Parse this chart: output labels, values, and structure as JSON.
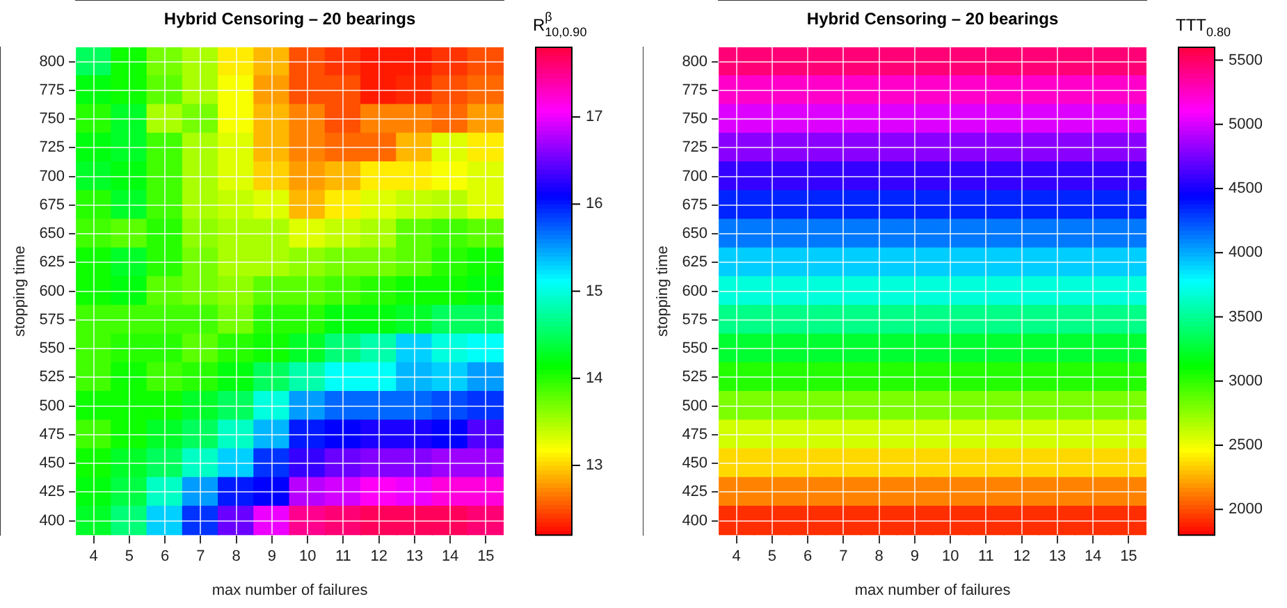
{
  "chart_data": [
    {
      "type": "heatmap",
      "title": "Hybrid Censoring – 20 bearings",
      "xlabel": "max number of failures",
      "ylabel": "stopping time",
      "clabel": "R$^{β}$$_{10,0.90}$",
      "grid": true,
      "categories": [
        "4",
        "5",
        "6",
        "7",
        "8",
        "9",
        "10",
        "11",
        "12",
        "13",
        "14",
        "15"
      ],
      "y_categories": [
        "800",
        "775",
        "750",
        "725",
        "700",
        "675",
        "650",
        "625",
        "600",
        "575",
        "550",
        "525",
        "500",
        "475",
        "450",
        "425",
        "400"
      ],
      "cells": [
        [
          14.5,
          14.1,
          13.7,
          13.5,
          13.1,
          12.9,
          12.5,
          12.4,
          12.3,
          12.3,
          12.4,
          12.5
        ],
        [
          14.2,
          14.1,
          13.8,
          13.5,
          13.2,
          12.8,
          12.5,
          12.5,
          12.3,
          12.35,
          12.5,
          12.6
        ],
        [
          14.0,
          14.3,
          13.5,
          13.7,
          13.2,
          12.9,
          12.7,
          12.5,
          12.7,
          12.7,
          12.6,
          12.8
        ],
        [
          14.2,
          14.3,
          13.9,
          13.5,
          13.3,
          12.9,
          12.7,
          12.6,
          12.6,
          12.9,
          13.3,
          13.1
        ],
        [
          14.3,
          14.2,
          13.9,
          13.5,
          13.3,
          13.0,
          12.8,
          12.9,
          13.1,
          13.1,
          13.2,
          13.3
        ],
        [
          14.0,
          14.3,
          13.9,
          13.5,
          13.4,
          13.3,
          12.9,
          13.1,
          13.3,
          13.4,
          13.45,
          13.3
        ],
        [
          13.9,
          13.8,
          14.0,
          13.6,
          13.5,
          13.5,
          13.3,
          13.4,
          13.5,
          13.8,
          13.9,
          13.8
        ],
        [
          14.1,
          14.3,
          14.0,
          13.7,
          13.5,
          13.5,
          13.6,
          13.7,
          13.7,
          13.8,
          14.0,
          14.1
        ],
        [
          14.1,
          14.2,
          13.8,
          13.7,
          13.6,
          13.8,
          13.8,
          13.9,
          14.0,
          14.1,
          14.1,
          14.2
        ],
        [
          13.9,
          13.9,
          13.9,
          13.9,
          13.7,
          14.0,
          14.0,
          14.2,
          14.2,
          14.3,
          14.5,
          14.5
        ],
        [
          13.9,
          14.0,
          14.0,
          13.8,
          14.0,
          14.1,
          14.3,
          14.6,
          14.8,
          15.3,
          15.0,
          15.1
        ],
        [
          13.9,
          14.1,
          13.9,
          14.0,
          14.2,
          14.5,
          14.8,
          15.1,
          15.1,
          15.4,
          15.3,
          15.5
        ],
        [
          14.1,
          14.1,
          14.1,
          14.3,
          14.5,
          15.0,
          15.5,
          15.7,
          15.7,
          15.7,
          15.8,
          15.9
        ],
        [
          13.9,
          14.1,
          14.3,
          14.5,
          14.9,
          15.4,
          16.0,
          16.1,
          16.2,
          16.2,
          16.1,
          16.4
        ],
        [
          14.1,
          14.3,
          14.5,
          14.9,
          15.3,
          15.9,
          16.3,
          16.5,
          16.6,
          16.6,
          16.7,
          16.7
        ],
        [
          14.2,
          14.4,
          14.9,
          15.5,
          16.0,
          16.1,
          16.8,
          16.9,
          17.1,
          17.0,
          17.2,
          17.2
        ],
        [
          14.3,
          14.6,
          15.3,
          15.9,
          16.5,
          17.0,
          17.5,
          17.6,
          17.7,
          17.7,
          17.7,
          17.6
        ]
      ],
      "clim": [
        12.2,
        17.8
      ],
      "cticks": [
        13,
        14,
        15,
        16,
        17
      ]
    },
    {
      "type": "heatmap",
      "title": "Hybrid Censoring – 20 bearings",
      "xlabel": "max number of failures",
      "ylabel": "stopping time",
      "clabel": "TTT$_{0.80}$",
      "grid": true,
      "categories": [
        "4",
        "5",
        "6",
        "7",
        "8",
        "9",
        "10",
        "11",
        "12",
        "13",
        "14",
        "15"
      ],
      "y_categories": [
        "800",
        "775",
        "750",
        "725",
        "700",
        "675",
        "650",
        "625",
        "600",
        "575",
        "550",
        "525",
        "500",
        "475",
        "450",
        "425",
        "400"
      ],
      "cells": [
        [
          5460,
          5460,
          5460,
          5460,
          5460,
          5460,
          5460,
          5460,
          5460,
          5460,
          5460,
          5460
        ],
        [
          5240,
          5240,
          5240,
          5240,
          5240,
          5240,
          5240,
          5240,
          5240,
          5240,
          5240,
          5240
        ],
        [
          5020,
          5020,
          5020,
          5020,
          5020,
          5020,
          5020,
          5020,
          5020,
          5020,
          5020,
          5020
        ],
        [
          4800,
          4800,
          4800,
          4800,
          4800,
          4800,
          4800,
          4800,
          4800,
          4800,
          4800,
          4800
        ],
        [
          4580,
          4580,
          4580,
          4580,
          4580,
          4580,
          4580,
          4580,
          4580,
          4580,
          4580,
          4580
        ],
        [
          4350,
          4350,
          4350,
          4350,
          4350,
          4350,
          4350,
          4350,
          4350,
          4350,
          4350,
          4350
        ],
        [
          4130,
          4130,
          4130,
          4130,
          4130,
          4130,
          4130,
          4130,
          4130,
          4130,
          4130,
          4130
        ],
        [
          3910,
          3910,
          3910,
          3910,
          3910,
          3910,
          3910,
          3910,
          3910,
          3910,
          3910,
          3910
        ],
        [
          3690,
          3690,
          3690,
          3690,
          3690,
          3690,
          3690,
          3690,
          3690,
          3690,
          3690,
          3690
        ],
        [
          3470,
          3470,
          3470,
          3470,
          3470,
          3470,
          3470,
          3470,
          3470,
          3470,
          3470,
          3470
        ],
        [
          3250,
          3250,
          3250,
          3250,
          3250,
          3250,
          3250,
          3250,
          3250,
          3250,
          3250,
          3250
        ],
        [
          3030,
          3030,
          3030,
          3030,
          3030,
          3030,
          3030,
          3030,
          3030,
          3030,
          3030,
          3030
        ],
        [
          2800,
          2800,
          2800,
          2800,
          2800,
          2800,
          2800,
          2800,
          2800,
          2800,
          2800,
          2800
        ],
        [
          2580,
          2580,
          2580,
          2580,
          2580,
          2580,
          2580,
          2580,
          2580,
          2580,
          2580,
          2580
        ],
        [
          2360,
          2360,
          2360,
          2360,
          2360,
          2360,
          2360,
          2360,
          2360,
          2360,
          2360,
          2360
        ],
        [
          2140,
          2140,
          2140,
          2140,
          2140,
          2140,
          2140,
          2140,
          2140,
          2140,
          2140,
          2140
        ],
        [
          1920,
          1920,
          1920,
          1920,
          1920,
          1920,
          1920,
          1920,
          1920,
          1920,
          1920,
          1920
        ]
      ],
      "clim": [
        1800,
        5600
      ],
      "cticks": [
        2000,
        2500,
        3000,
        3500,
        4000,
        4500,
        5000,
        5500
      ]
    }
  ]
}
